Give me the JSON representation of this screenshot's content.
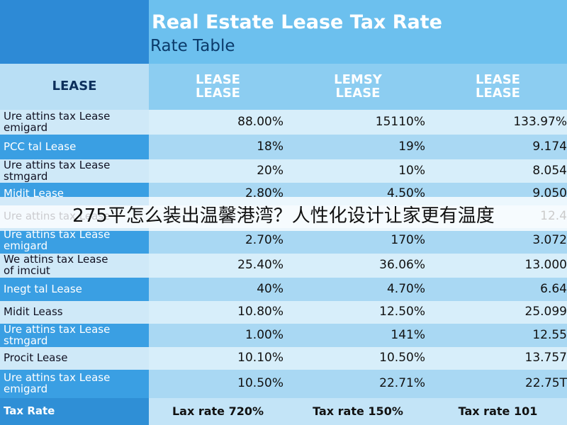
{
  "header": {
    "title": "Real Estate Lease Tax Rate",
    "subtitle": "Rate Table"
  },
  "table": {
    "columns": [
      "LEASE",
      "LEASE\nLEASE",
      "LEMSY\nLEASE",
      "LEASE\nLEASE"
    ],
    "rows": [
      [
        "Ure attins tax Lease\nemigard",
        "88.00%",
        "15110%",
        "133.97%"
      ],
      [
        "PCC tal Lease",
        "18%",
        "19%",
        "9.174"
      ],
      [
        "Ure attins tax Lease\nstmgard",
        "20%",
        "10%",
        "8.054"
      ],
      [
        "Midit Lease",
        "2.80%",
        "4.50%",
        "9.050"
      ],
      [
        "Ure attins tax Lease",
        null,
        null,
        "12.4"
      ],
      [
        "Ure attins tax Lease\nemigard",
        "2.70%",
        "170%",
        "3.072"
      ],
      [
        "We attins tax Lease\nof imciut",
        "25.40%",
        "36.06%",
        "13.000"
      ],
      [
        "Inegt tal Lease",
        "40%",
        "4.70%",
        "6.64"
      ],
      [
        "Midit Leass",
        "10.80%",
        "12.50%",
        "25.099"
      ],
      [
        "Ure attins tax Lease\nstmgard",
        "1.00%",
        "141%",
        "12.55"
      ],
      [
        "Procit Lease",
        "10.10%",
        "10.50%",
        "13.757"
      ],
      [
        "Ure attins tax Lease\nemigard",
        "10.50%",
        "22.71%",
        "22.75T"
      ]
    ],
    "footer": [
      "Tax Rate",
      "Lax rate 720%",
      "Tax rate 150%",
      "Tax rate 101"
    ]
  },
  "banner": {
    "text": "275平怎么装出温馨港湾？人性化设计让家更有温度"
  }
}
